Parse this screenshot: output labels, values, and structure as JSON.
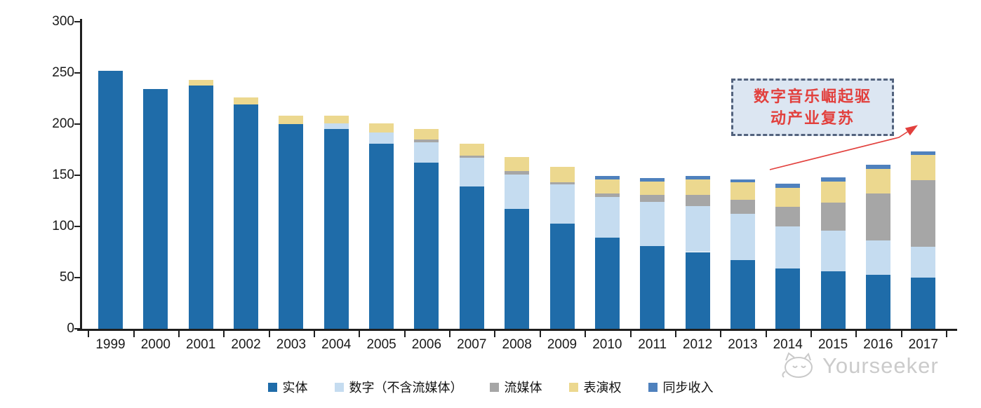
{
  "chart_data": {
    "type": "bar",
    "stacked": true,
    "title": "",
    "xlabel": "",
    "ylabel": "",
    "ylim": [
      0,
      300
    ],
    "yticks": [
      0,
      50,
      100,
      150,
      200,
      250,
      300
    ],
    "grid": false,
    "legend_position": "bottom",
    "categories": [
      "1999",
      "2000",
      "2001",
      "2002",
      "2003",
      "2004",
      "2005",
      "2006",
      "2007",
      "2008",
      "2009",
      "2010",
      "2011",
      "2012",
      "2013",
      "2014",
      "2015",
      "2016",
      "2017"
    ],
    "series": [
      {
        "name": "实体",
        "color": "#1F6CA9",
        "values": [
          252,
          234,
          238,
          219,
          200,
          195,
          181,
          162,
          139,
          117,
          103,
          89,
          81,
          75,
          67,
          59,
          56,
          53,
          50
        ]
      },
      {
        "name": "数字（不含流媒体）",
        "color": "#C5DCF0",
        "values": [
          0,
          0,
          0,
          0,
          0,
          6,
          11,
          20,
          28,
          34,
          38,
          40,
          43,
          45,
          45,
          41,
          40,
          33,
          30
        ]
      },
      {
        "name": "流媒体",
        "color": "#A6A6A6",
        "values": [
          0,
          0,
          0,
          0,
          0,
          0,
          0,
          3,
          2,
          3,
          2,
          3,
          7,
          11,
          14,
          19,
          27,
          46,
          65
        ]
      },
      {
        "name": "表演权",
        "color": "#ECD88F",
        "values": [
          0,
          0,
          5,
          7,
          8,
          7,
          9,
          10,
          12,
          14,
          15,
          14,
          13,
          15,
          17,
          19,
          21,
          24,
          25
        ]
      },
      {
        "name": "同步收入",
        "color": "#4F81BD",
        "values": [
          0,
          0,
          0,
          0,
          0,
          0,
          0,
          0,
          0,
          0,
          0,
          3,
          3,
          3,
          3,
          4,
          4,
          4,
          3
        ]
      }
    ]
  },
  "annotation": {
    "line1": "数字音乐崛起驱",
    "line2": "动产业复苏",
    "full_text": "数字音乐崛起驱动产业复苏",
    "text_color": "#E2403D",
    "box_fill": "#DCE6F2",
    "box_border_color": "#53637E",
    "arrow_color": "#E2403D"
  },
  "watermark": {
    "text": "Yourseeker"
  }
}
